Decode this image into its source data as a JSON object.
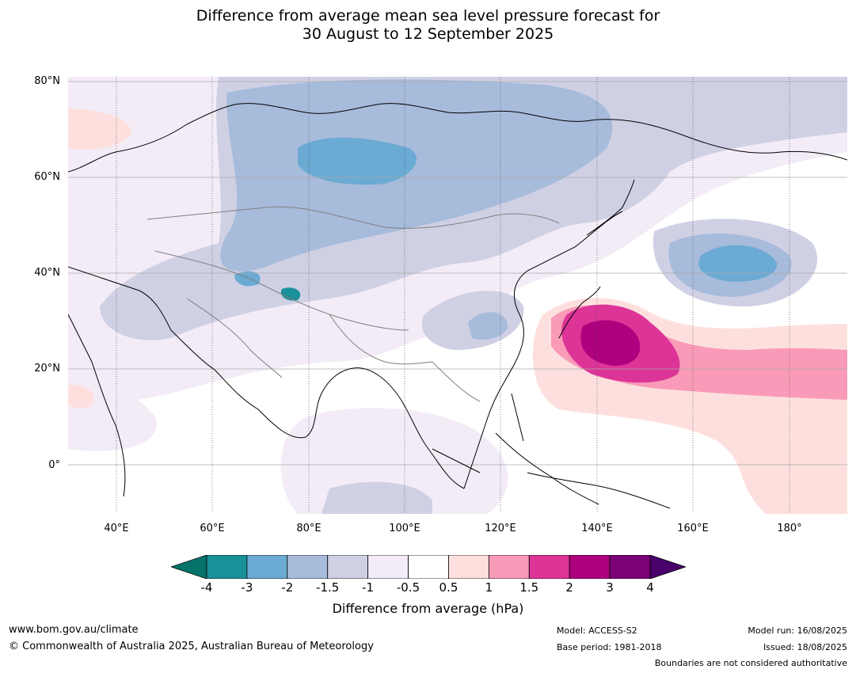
{
  "title_line1": "Difference from average mean sea level pressure forecast for",
  "title_line2": "30 August to 12 September 2025",
  "lat_labels": [
    "80°N",
    "60°N",
    "40°N",
    "20°N",
    "0°"
  ],
  "lon_labels": [
    "40°E",
    "60°E",
    "80°E",
    "100°E",
    "120°E",
    "140°E",
    "160°E",
    "180°"
  ],
  "colorbar": {
    "label": "Difference from average (hPa)",
    "ticks": [
      "-4",
      "-3",
      "-2",
      "-1.5",
      "-1",
      "-0.5",
      "0.5",
      "1",
      "1.5",
      "2",
      "3",
      "4"
    ],
    "colors": [
      "#1a9098",
      "#6aaad3",
      "#a7bbdb",
      "#cfd0e4",
      "#f3ecf6",
      "#ffffff",
      "#fde0de",
      "#f99bb8",
      "#dd3497",
      "#ae017e",
      "#7a0177"
    ],
    "extend_low_color": "#06736a",
    "extend_high_color": "#49006a"
  },
  "footer": {
    "website": "www.bom.gov.au/climate",
    "copyright": "© Commonwealth of Australia 2025, Australian Bureau of Meteorology",
    "model": "Model: ACCESS-S2",
    "base_period": "Base period: 1981-2018",
    "model_run": "Model run: 16/08/2025",
    "issued": "Issued: 18/08/2025",
    "disclaimer": "Boundaries are not considered authoritative"
  }
}
